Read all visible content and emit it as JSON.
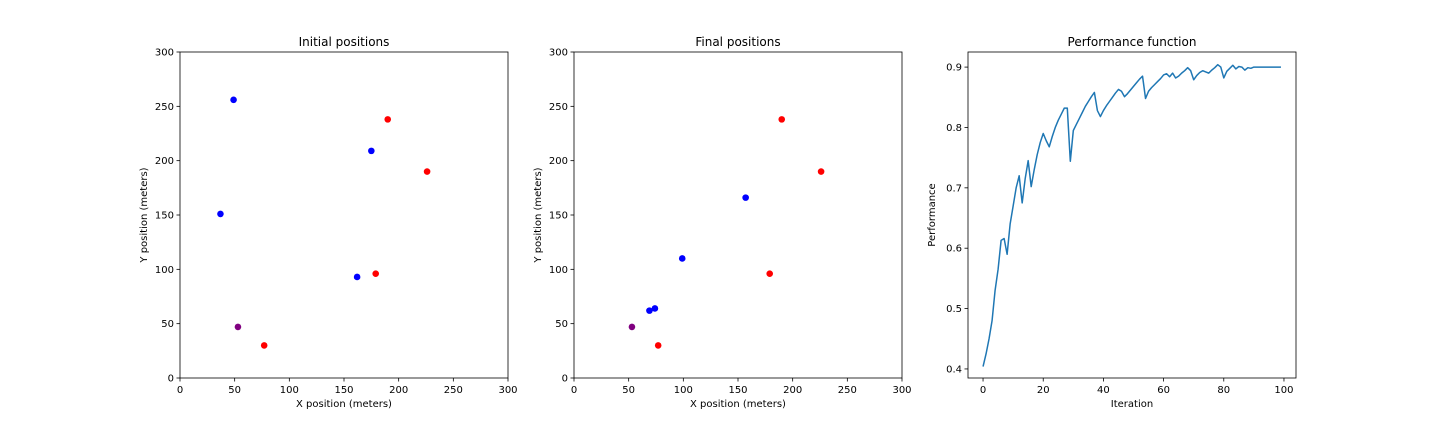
{
  "chart_data": [
    {
      "type": "scatter",
      "title": "Initial positions",
      "xlabel": "X position (meters)",
      "ylabel": "Y position (meters)",
      "xlim": [
        0,
        300
      ],
      "ylim": [
        0,
        300
      ],
      "xticks": [
        0,
        50,
        100,
        150,
        200,
        250,
        300
      ],
      "yticks": [
        0,
        50,
        100,
        150,
        200,
        250,
        300
      ],
      "points": [
        {
          "x": 49,
          "y": 256,
          "color": "#0000ff"
        },
        {
          "x": 37,
          "y": 151,
          "color": "#0000ff"
        },
        {
          "x": 175,
          "y": 209,
          "color": "#0000ff"
        },
        {
          "x": 162,
          "y": 93,
          "color": "#0000ff"
        },
        {
          "x": 190,
          "y": 238,
          "color": "#ff0000"
        },
        {
          "x": 226,
          "y": 190,
          "color": "#ff0000"
        },
        {
          "x": 179,
          "y": 96,
          "color": "#ff0000"
        },
        {
          "x": 77,
          "y": 30,
          "color": "#ff0000"
        },
        {
          "x": 53,
          "y": 47,
          "color": "#800080"
        }
      ],
      "grid": false
    },
    {
      "type": "scatter",
      "title": "Final positions",
      "xlabel": "X position (meters)",
      "ylabel": "Y position (meters)",
      "xlim": [
        0,
        300
      ],
      "ylim": [
        0,
        300
      ],
      "xticks": [
        0,
        50,
        100,
        150,
        200,
        250,
        300
      ],
      "yticks": [
        0,
        50,
        100,
        150,
        200,
        250,
        300
      ],
      "points": [
        {
          "x": 157,
          "y": 166,
          "color": "#0000ff"
        },
        {
          "x": 99,
          "y": 110,
          "color": "#0000ff"
        },
        {
          "x": 69,
          "y": 62,
          "color": "#0000ff"
        },
        {
          "x": 74,
          "y": 64,
          "color": "#0000ff"
        },
        {
          "x": 190,
          "y": 238,
          "color": "#ff0000"
        },
        {
          "x": 226,
          "y": 190,
          "color": "#ff0000"
        },
        {
          "x": 179,
          "y": 96,
          "color": "#ff0000"
        },
        {
          "x": 77,
          "y": 30,
          "color": "#ff0000"
        },
        {
          "x": 53,
          "y": 47,
          "color": "#800080"
        }
      ],
      "grid": false
    },
    {
      "type": "line",
      "title": "Performance function",
      "xlabel": "Iteration",
      "ylabel": "Performance",
      "xlim": [
        -5,
        104
      ],
      "ylim": [
        0.385,
        0.925
      ],
      "xticks": [
        0,
        20,
        40,
        60,
        80,
        100
      ],
      "yticks": [
        0.4,
        0.5,
        0.6,
        0.7,
        0.8,
        0.9
      ],
      "color": "#1f77b4",
      "grid": false,
      "x": [
        0,
        1,
        2,
        3,
        4,
        5,
        6,
        7,
        8,
        9,
        10,
        11,
        12,
        13,
        14,
        15,
        16,
        17,
        18,
        19,
        20,
        21,
        22,
        23,
        24,
        25,
        26,
        27,
        28,
        29,
        30,
        31,
        32,
        33,
        34,
        35,
        36,
        37,
        38,
        39,
        40,
        41,
        42,
        43,
        44,
        45,
        46,
        47,
        48,
        49,
        50,
        51,
        52,
        53,
        54,
        55,
        56,
        57,
        58,
        59,
        60,
        61,
        62,
        63,
        64,
        65,
        66,
        67,
        68,
        69,
        70,
        71,
        72,
        73,
        74,
        75,
        76,
        77,
        78,
        79,
        80,
        81,
        82,
        83,
        84,
        85,
        86,
        87,
        88,
        89,
        90,
        91,
        92,
        93,
        94,
        95,
        96,
        97,
        98,
        99
      ],
      "y": [
        0.404,
        0.425,
        0.45,
        0.48,
        0.53,
        0.565,
        0.613,
        0.616,
        0.59,
        0.64,
        0.67,
        0.7,
        0.72,
        0.675,
        0.715,
        0.745,
        0.702,
        0.73,
        0.755,
        0.775,
        0.79,
        0.778,
        0.768,
        0.785,
        0.8,
        0.812,
        0.822,
        0.832,
        0.832,
        0.744,
        0.795,
        0.805,
        0.815,
        0.825,
        0.835,
        0.843,
        0.851,
        0.858,
        0.828,
        0.818,
        0.828,
        0.836,
        0.843,
        0.85,
        0.857,
        0.863,
        0.86,
        0.851,
        0.856,
        0.862,
        0.868,
        0.874,
        0.88,
        0.885,
        0.848,
        0.86,
        0.866,
        0.871,
        0.876,
        0.881,
        0.887,
        0.889,
        0.884,
        0.89,
        0.882,
        0.885,
        0.89,
        0.894,
        0.899,
        0.894,
        0.879,
        0.886,
        0.891,
        0.894,
        0.892,
        0.89,
        0.895,
        0.899,
        0.904,
        0.9,
        0.882,
        0.893,
        0.898,
        0.903,
        0.897,
        0.901,
        0.9,
        0.895,
        0.899,
        0.898,
        0.9,
        0.9,
        0.9,
        0.9,
        0.9,
        0.9,
        0.9,
        0.9,
        0.9,
        0.9
      ]
    }
  ]
}
